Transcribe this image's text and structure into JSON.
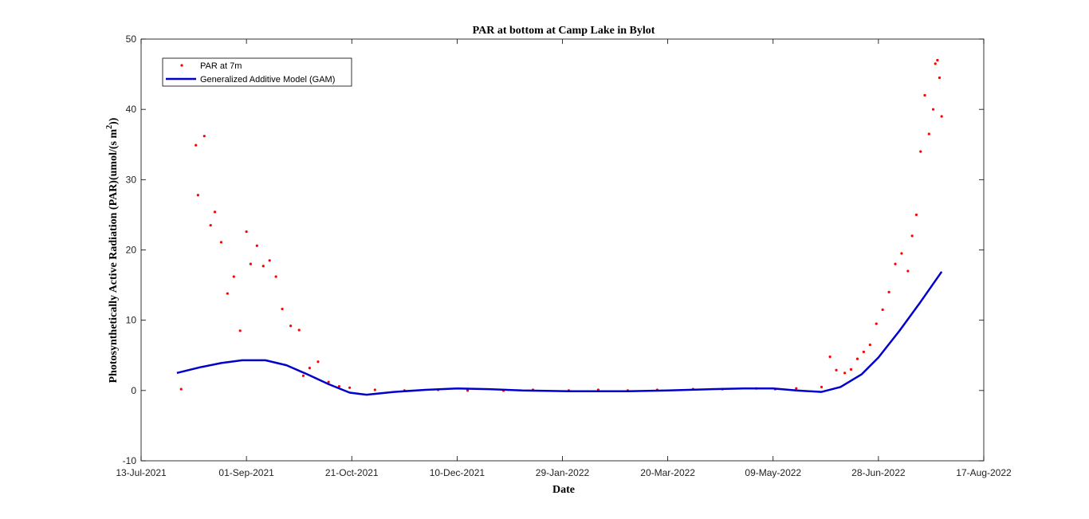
{
  "chart_data": {
    "type": "scatter",
    "title": "PAR at bottom at Camp Lake in Bylot",
    "xlabel": "Date",
    "ylabel_main": "Photosynthetically Active Radiation (PAR)(umol/(s m",
    "ylabel_sup": "2",
    "ylabel_end": "))",
    "xlim": [
      "2021-07-13",
      "2022-08-17"
    ],
    "ylim": [
      -10,
      50
    ],
    "x_ticks": [
      "13-Jul-2021",
      "01-Sep-2021",
      "21-Oct-2021",
      "10-Dec-2021",
      "29-Jan-2022",
      "20-Mar-2022",
      "09-May-2022",
      "28-Jun-2022",
      "17-Aug-2022"
    ],
    "y_ticks": [
      "-10",
      "0",
      "10",
      "20",
      "30",
      "40",
      "50"
    ],
    "grid": false,
    "legend_position": "top-left",
    "series": [
      {
        "name": "PAR at 7m",
        "kind": "points",
        "color": "#ff0000",
        "x": [
          "2021-08-01",
          "2021-08-08",
          "2021-08-09",
          "2021-08-12",
          "2021-08-15",
          "2021-08-17",
          "2021-08-20",
          "2021-08-23",
          "2021-08-26",
          "2021-08-29",
          "2021-09-01",
          "2021-09-03",
          "2021-09-06",
          "2021-09-09",
          "2021-09-12",
          "2021-09-15",
          "2021-09-18",
          "2021-09-22",
          "2021-09-26",
          "2021-09-28",
          "2021-10-01",
          "2021-10-05",
          "2021-10-10",
          "2021-10-15",
          "2021-10-20",
          "2021-11-01",
          "2021-11-15",
          "2021-12-01",
          "2021-12-15",
          "2022-01-01",
          "2022-01-15",
          "2022-02-01",
          "2022-02-15",
          "2022-03-01",
          "2022-03-15",
          "2022-04-01",
          "2022-04-15",
          "2022-05-01",
          "2022-05-10",
          "2022-05-20",
          "2022-06-01",
          "2022-06-05",
          "2022-06-08",
          "2022-06-12",
          "2022-06-15",
          "2022-06-18",
          "2022-06-21",
          "2022-06-24",
          "2022-06-27",
          "2022-06-30",
          "2022-07-03",
          "2022-07-06",
          "2022-07-09",
          "2022-07-12",
          "2022-07-14",
          "2022-07-16",
          "2022-07-18",
          "2022-07-20",
          "2022-07-22",
          "2022-07-24",
          "2022-07-25",
          "2022-07-26",
          "2022-07-27",
          "2022-07-28"
        ],
        "y": [
          0.2,
          34.9,
          27.8,
          36.2,
          23.5,
          25.4,
          21.1,
          13.8,
          16.2,
          8.5,
          22.6,
          18.0,
          20.6,
          17.7,
          18.5,
          16.2,
          11.6,
          9.2,
          8.6,
          2.1,
          3.2,
          4.1,
          1.2,
          0.6,
          0.4,
          0.1,
          0.0,
          0.1,
          0.0,
          0.0,
          0.1,
          0.0,
          0.1,
          0.0,
          0.1,
          0.2,
          0.2,
          0.3,
          0.2,
          0.3,
          0.5,
          4.8,
          2.9,
          2.5,
          3.0,
          4.5,
          5.5,
          6.5,
          9.5,
          11.5,
          14.0,
          18.0,
          19.5,
          17.0,
          22.0,
          25.0,
          34.0,
          42.0,
          36.5,
          40.0,
          46.5,
          47.0,
          44.5,
          39.0
        ]
      },
      {
        "name": "Generalized Additive Model (GAM)",
        "kind": "line",
        "color": "#0000cc",
        "x": [
          "2021-07-30",
          "2021-08-10",
          "2021-08-20",
          "2021-08-30",
          "2021-09-10",
          "2021-09-20",
          "2021-09-30",
          "2021-10-10",
          "2021-10-20",
          "2021-10-28",
          "2021-11-10",
          "2021-11-25",
          "2021-12-10",
          "2021-12-25",
          "2022-01-10",
          "2022-02-01",
          "2022-03-01",
          "2022-03-20",
          "2022-04-10",
          "2022-04-25",
          "2022-05-09",
          "2022-05-20",
          "2022-06-01",
          "2022-06-10",
          "2022-06-20",
          "2022-06-28",
          "2022-07-08",
          "2022-07-18",
          "2022-07-28"
        ],
        "y": [
          2.5,
          3.3,
          3.9,
          4.3,
          4.3,
          3.6,
          2.3,
          0.9,
          -0.3,
          -0.6,
          -0.2,
          0.1,
          0.3,
          0.2,
          0.0,
          -0.1,
          -0.1,
          0.0,
          0.2,
          0.3,
          0.3,
          0.0,
          -0.2,
          0.5,
          2.3,
          4.7,
          8.5,
          12.6,
          16.9
        ]
      }
    ]
  }
}
